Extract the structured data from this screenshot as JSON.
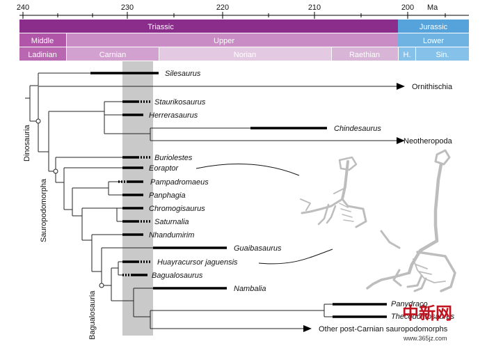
{
  "timescale": {
    "ticks": [
      "240",
      "230",
      "220",
      "210",
      "200"
    ],
    "unit": "Ma",
    "periods": [
      {
        "label": "Triassic",
        "color": "#8b2d8a"
      },
      {
        "label": "Jurassic",
        "color": "#55a3da"
      }
    ],
    "epochs": [
      {
        "label": "Middle",
        "color": "#b055a8"
      },
      {
        "label": "Upper",
        "color": "#c98cc4"
      },
      {
        "label": "Lower",
        "color": "#6fb3e2"
      }
    ],
    "stages": [
      {
        "label": "Ladinian",
        "color": "#b867b0"
      },
      {
        "label": "Carnian",
        "color": "#d3a1cf"
      },
      {
        "label": "Norian",
        "color": "#e4c9e2"
      },
      {
        "label": "Raethian",
        "color": "#d8b4d6"
      },
      {
        "label": "H.",
        "color": "#85c1e8"
      },
      {
        "label": "Sin.",
        "color": "#85c1e8"
      }
    ]
  },
  "taxa": [
    {
      "label": "Silesaurus"
    },
    {
      "label": "Staurikosaurus"
    },
    {
      "label": "Herrerasaurus"
    },
    {
      "label": "Chindesaurus"
    },
    {
      "label": "Buriolestes"
    },
    {
      "label": "Eoraptor"
    },
    {
      "label": "Pampadromaeus"
    },
    {
      "label": "Panphagia"
    },
    {
      "label": "Chromogisaurus"
    },
    {
      "label": "Saturnalia"
    },
    {
      "label": "Nhandumirim"
    },
    {
      "label": "Guaibasaurus"
    },
    {
      "label": "Huayracursor jaguensis"
    },
    {
      "label": "Bagualosaurus"
    },
    {
      "label": "Nambalia"
    },
    {
      "label": "Panydraco"
    },
    {
      "label": "Thecodontosaurus"
    }
  ],
  "lineages": [
    {
      "label": "Ornithischia"
    },
    {
      "label": "Neotheropoda"
    },
    {
      "label": "Other post-Carnian sauropodomorphs"
    }
  ],
  "clades": [
    {
      "label": "Dinosauria"
    },
    {
      "label": "Sauropodomorpha"
    },
    {
      "label": "Bagualosauria"
    }
  ],
  "watermark": {
    "logo": "中新网",
    "url": "www.365jz.com"
  },
  "colors": {
    "highlight": "#c9c9c9",
    "skeleton": "#bdbdbd"
  }
}
